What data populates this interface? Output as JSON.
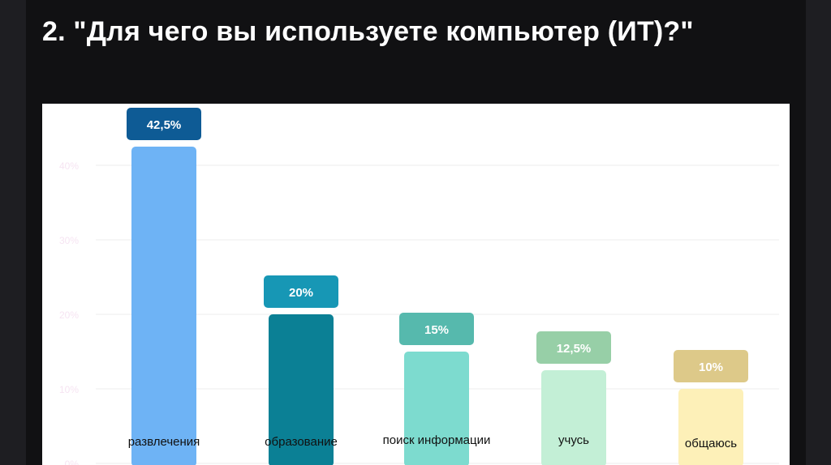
{
  "slide": {
    "title": "2. \"Для чего вы используете компьютер (ИТ)?\""
  },
  "chart_data": {
    "type": "bar",
    "title": "",
    "xlabel": "",
    "ylabel": "",
    "categories": [
      "развлечения",
      "образование",
      "поиск информации",
      "учусь",
      "общаюсь"
    ],
    "values": [
      42.5,
      20,
      15,
      12.5,
      10
    ],
    "value_labels": [
      "42,5%",
      "20%",
      "15%",
      "12,5%",
      "10%"
    ],
    "y_ticks": [
      "0%",
      "10%",
      "20%",
      "30%",
      "40%"
    ],
    "ylim": [
      0,
      50
    ],
    "grid": true,
    "legend": "none",
    "bar_colors": [
      "#6eb3f5",
      "#0b8095",
      "#7ddbcf",
      "#c3efd6",
      "#fdf0b8"
    ],
    "label_colors": [
      "#0e5b95",
      "#1797b5",
      "#56b9ad",
      "#97cfa7",
      "#ddc989"
    ],
    "tick_color": "#f6e4f2",
    "grid_color": "#ececec"
  }
}
